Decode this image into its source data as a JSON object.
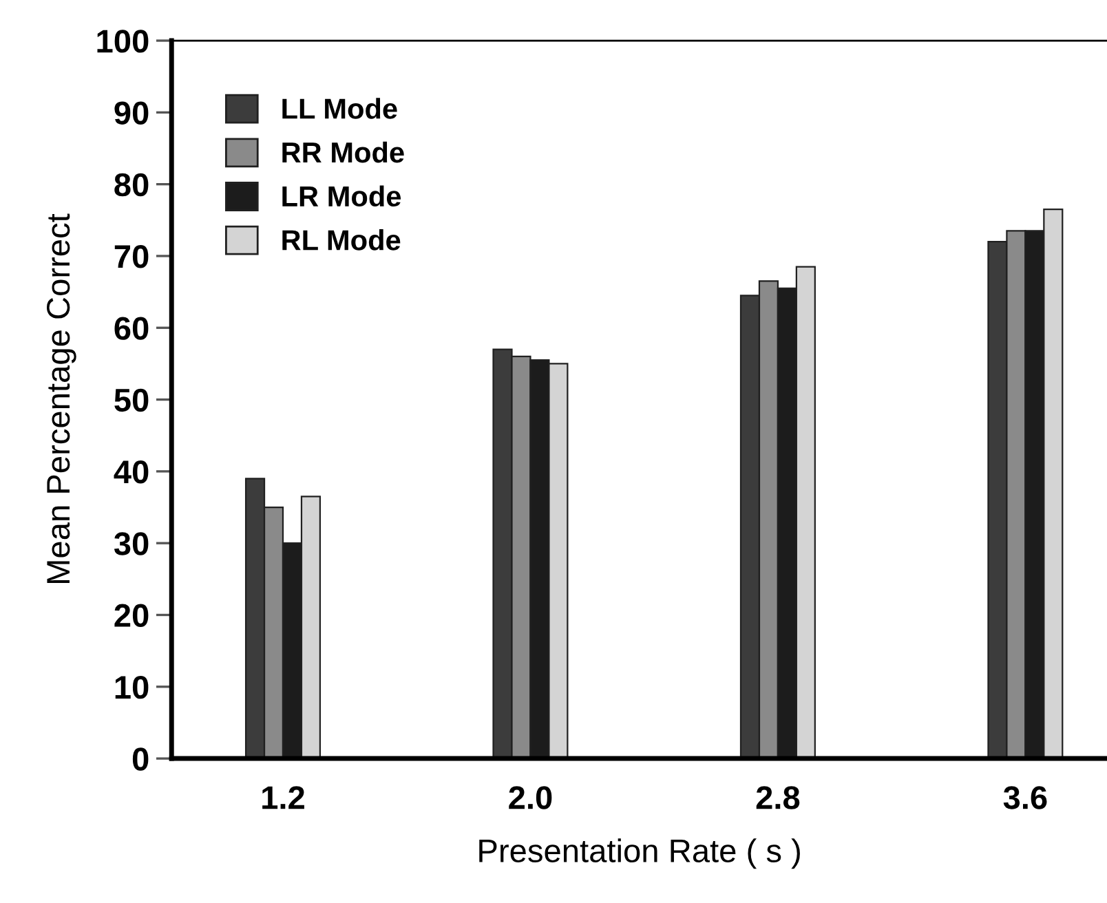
{
  "chart_data": {
    "type": "bar",
    "xlabel": "Presentation Rate ( s )",
    "ylabel": "Mean Percentage Correct",
    "categories": [
      "1.2",
      "2.0",
      "2.8",
      "3.6"
    ],
    "series": [
      {
        "name": "LL Mode",
        "color": "#3c3c3c",
        "values": [
          39,
          57,
          64.5,
          72
        ]
      },
      {
        "name": "RR Mode",
        "color": "#8a8a8a",
        "values": [
          35,
          56,
          66.5,
          73.5
        ]
      },
      {
        "name": "LR Mode",
        "color": "#1c1c1c",
        "values": [
          30,
          55.5,
          65.5,
          73.5
        ]
      },
      {
        "name": "RL Mode",
        "color": "#d4d4d4",
        "values": [
          36.5,
          55,
          68.5,
          76.5
        ]
      }
    ],
    "ylim": [
      0,
      100
    ],
    "yticks": [
      0,
      10,
      20,
      30,
      40,
      50,
      60,
      70,
      80,
      90,
      100
    ],
    "grid": false,
    "legend": "top left"
  }
}
